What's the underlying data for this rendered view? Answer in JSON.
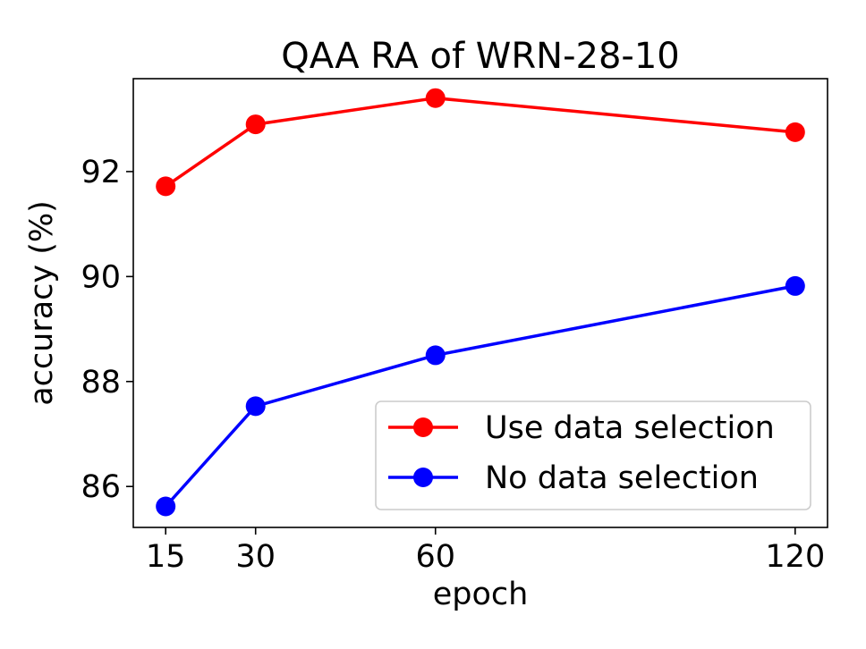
{
  "chart_data": {
    "type": "line",
    "title": "QAA RA of WRN-28-10",
    "xlabel": "epoch",
    "ylabel": "accuracy (%)",
    "x": [
      15,
      30,
      60,
      120
    ],
    "xticks": [
      15,
      30,
      60,
      120
    ],
    "yticks": [
      86,
      88,
      90,
      92
    ],
    "xlim": [
      9.6,
      125.4
    ],
    "ylim": [
      85.22,
      93.77
    ],
    "grid": false,
    "legend_position": "lower-right",
    "series": [
      {
        "name": "Use data selection",
        "color": "#ff0000",
        "marker": "circle",
        "values": [
          91.72,
          92.9,
          93.4,
          92.75
        ]
      },
      {
        "name": "No data selection",
        "color": "#0000ff",
        "marker": "circle",
        "values": [
          85.62,
          87.53,
          88.5,
          89.82
        ]
      }
    ]
  }
}
